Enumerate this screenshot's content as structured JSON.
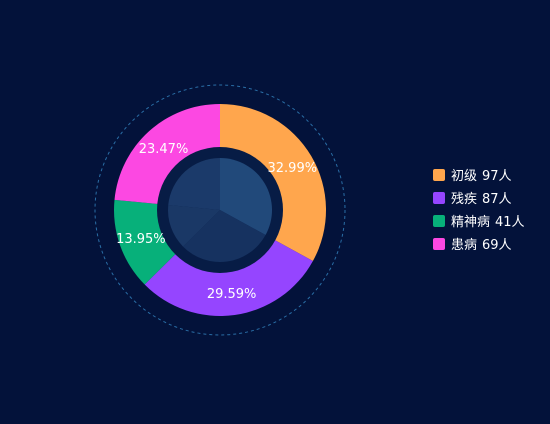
{
  "chart_data": {
    "type": "pie",
    "variant": "donut",
    "unit": "人",
    "categories": [
      "初级",
      "残疾",
      "精神病",
      "患病"
    ],
    "values": [
      97,
      87,
      41,
      69
    ],
    "percent_labels": [
      "32.99%",
      "29.59%",
      "13.95%",
      "23.47%"
    ],
    "colors": [
      "#ffa64d",
      "#9545ff",
      "#07b07a",
      "#fc48e2"
    ],
    "legend_position": "right"
  },
  "legend": {
    "items": [
      {
        "name": "初级",
        "value": "97人"
      },
      {
        "name": "残疾",
        "value": "87人"
      },
      {
        "name": "精神病",
        "value": "41人"
      },
      {
        "name": "患病",
        "value": "69人"
      }
    ]
  },
  "theme": {
    "background": "#03123a",
    "ring_color": "#2a6ea6",
    "inner_disc": "#1d3a6b"
  }
}
